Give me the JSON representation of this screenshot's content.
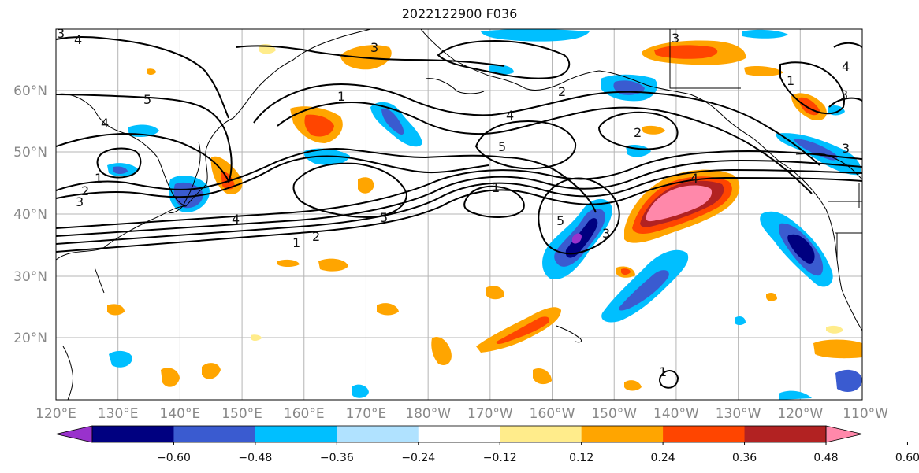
{
  "title": "2022122900 F036",
  "map": {
    "lat_labels": [
      "60°N",
      "50°N",
      "40°N",
      "30°N",
      "20°N"
    ],
    "lon_labels": [
      "120°E",
      "130°E",
      "140°E",
      "150°E",
      "160°E",
      "170°E",
      "180°W",
      "170°W",
      "160°W",
      "150°W",
      "140°W",
      "130°W",
      "120°W",
      "110°W"
    ],
    "contour_labels": [
      "1",
      "2",
      "3",
      "4",
      "5"
    ]
  },
  "colorbar": {
    "labels": [
      "-0.60",
      "-0.48",
      "-0.36",
      "-0.24",
      "-0.12",
      "0.12",
      "0.24",
      "0.36",
      "0.48",
      "0.60"
    ],
    "colors": [
      "#9932CC",
      "#000080",
      "#3A5BD0",
      "#00BFFF",
      "#B0E2FF",
      "#FFFFFF",
      "#FFEC8B",
      "#FFA500",
      "#FF4500",
      "#B22222",
      "#FF88AA"
    ]
  }
}
